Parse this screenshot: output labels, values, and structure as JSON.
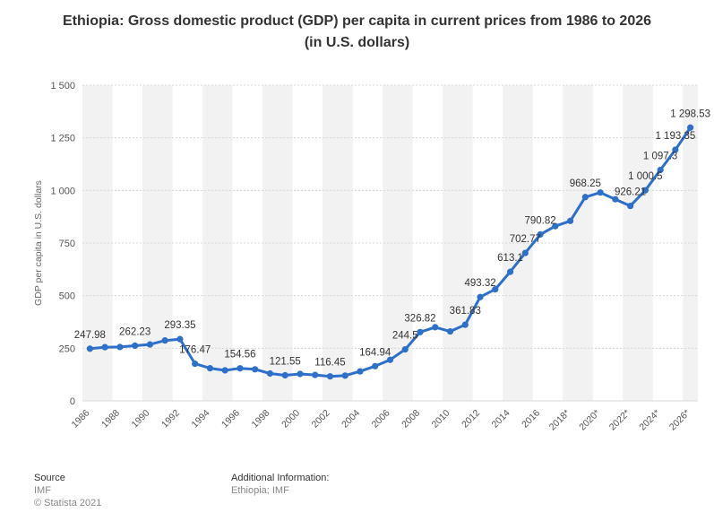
{
  "title_line1": "Ethiopia: Gross domestic product (GDP) per capita in current prices from 1986 to 2026",
  "title_line2": "(in U.S. dollars)",
  "footer": {
    "source_label": "Source",
    "source_value": "IMF",
    "copyright": "© Statista 2021",
    "additional_label": "Additional Information:",
    "additional_value": "Ethiopia; IMF"
  },
  "colors": {
    "line": "#2d6fc9",
    "band": "#f2f2f2",
    "grid": "#d8d8d8"
  },
  "chart_data": {
    "type": "line",
    "title": "Ethiopia: Gross domestic product (GDP) per capita in current prices from 1986 to 2026 (in U.S. dollars)",
    "ylabel": "GDP per capita in U.S. dollars",
    "xlabel": "",
    "ylim": [
      0,
      1500
    ],
    "yticks": [
      0,
      250,
      500,
      750,
      1000,
      1250,
      1500
    ],
    "ytick_labels": [
      "0",
      "250",
      "500",
      "750",
      "1 000",
      "1 250",
      "1 500"
    ],
    "x_tick_labels": [
      "1986",
      "1988",
      "1990",
      "1992",
      "1994",
      "1996",
      "1998",
      "2000",
      "2002",
      "2004",
      "2006",
      "2008",
      "2010",
      "2012",
      "2014",
      "2016",
      "2018*",
      "2020*",
      "2022*",
      "2024*",
      "2026*"
    ],
    "grid": true,
    "legend": "none",
    "series": [
      {
        "x": [
          "1986",
          "1987",
          "1988",
          "1989",
          "1990",
          "1991",
          "1992",
          "1993",
          "1994",
          "1995",
          "1996",
          "1997",
          "1998",
          "1999",
          "2000",
          "2001",
          "2002",
          "2003",
          "2004",
          "2005",
          "2006",
          "2007",
          "2008",
          "2009",
          "2010",
          "2011",
          "2012",
          "2013",
          "2014",
          "2015",
          "2016",
          "2017",
          "2018*",
          "2019*",
          "2020*",
          "2021*",
          "2022*",
          "2023*",
          "2024*",
          "2025*",
          "2026*"
        ],
        "values": [
          247.98,
          255,
          256,
          262.23,
          268,
          287,
          293.35,
          176.47,
          155,
          145,
          154.56,
          150,
          130,
          121.55,
          128,
          123,
          116.45,
          120,
          140,
          164.94,
          195,
          244.5,
          326.82,
          350,
          330,
          361.83,
          493.32,
          530,
          613.1,
          702.77,
          790.82,
          830,
          855,
          968.25,
          990,
          958,
          926.21,
          1000.5,
          1097.3,
          1193.35,
          1298.53
        ]
      }
    ],
    "data_labels": [
      {
        "index": 0,
        "text": "247.98"
      },
      {
        "index": 3,
        "text": "262.23"
      },
      {
        "index": 6,
        "text": "293.35"
      },
      {
        "index": 7,
        "text": "176.47"
      },
      {
        "index": 10,
        "text": "154.56"
      },
      {
        "index": 13,
        "text": "121.55"
      },
      {
        "index": 16,
        "text": "116.45"
      },
      {
        "index": 19,
        "text": "164.94"
      },
      {
        "index": 21,
        "text": "244.5"
      },
      {
        "index": 22,
        "text": "326.82"
      },
      {
        "index": 25,
        "text": "361.83"
      },
      {
        "index": 26,
        "text": "493.32"
      },
      {
        "index": 28,
        "text": "613.1"
      },
      {
        "index": 29,
        "text": "702.77"
      },
      {
        "index": 30,
        "text": "790.82"
      },
      {
        "index": 33,
        "text": "968.25"
      },
      {
        "index": 36,
        "text": "926.21"
      },
      {
        "index": 37,
        "text": "1 000.5"
      },
      {
        "index": 38,
        "text": "1 097.3"
      },
      {
        "index": 39,
        "text": "1 193.35"
      },
      {
        "index": 40,
        "text": "1 298.53"
      }
    ]
  }
}
